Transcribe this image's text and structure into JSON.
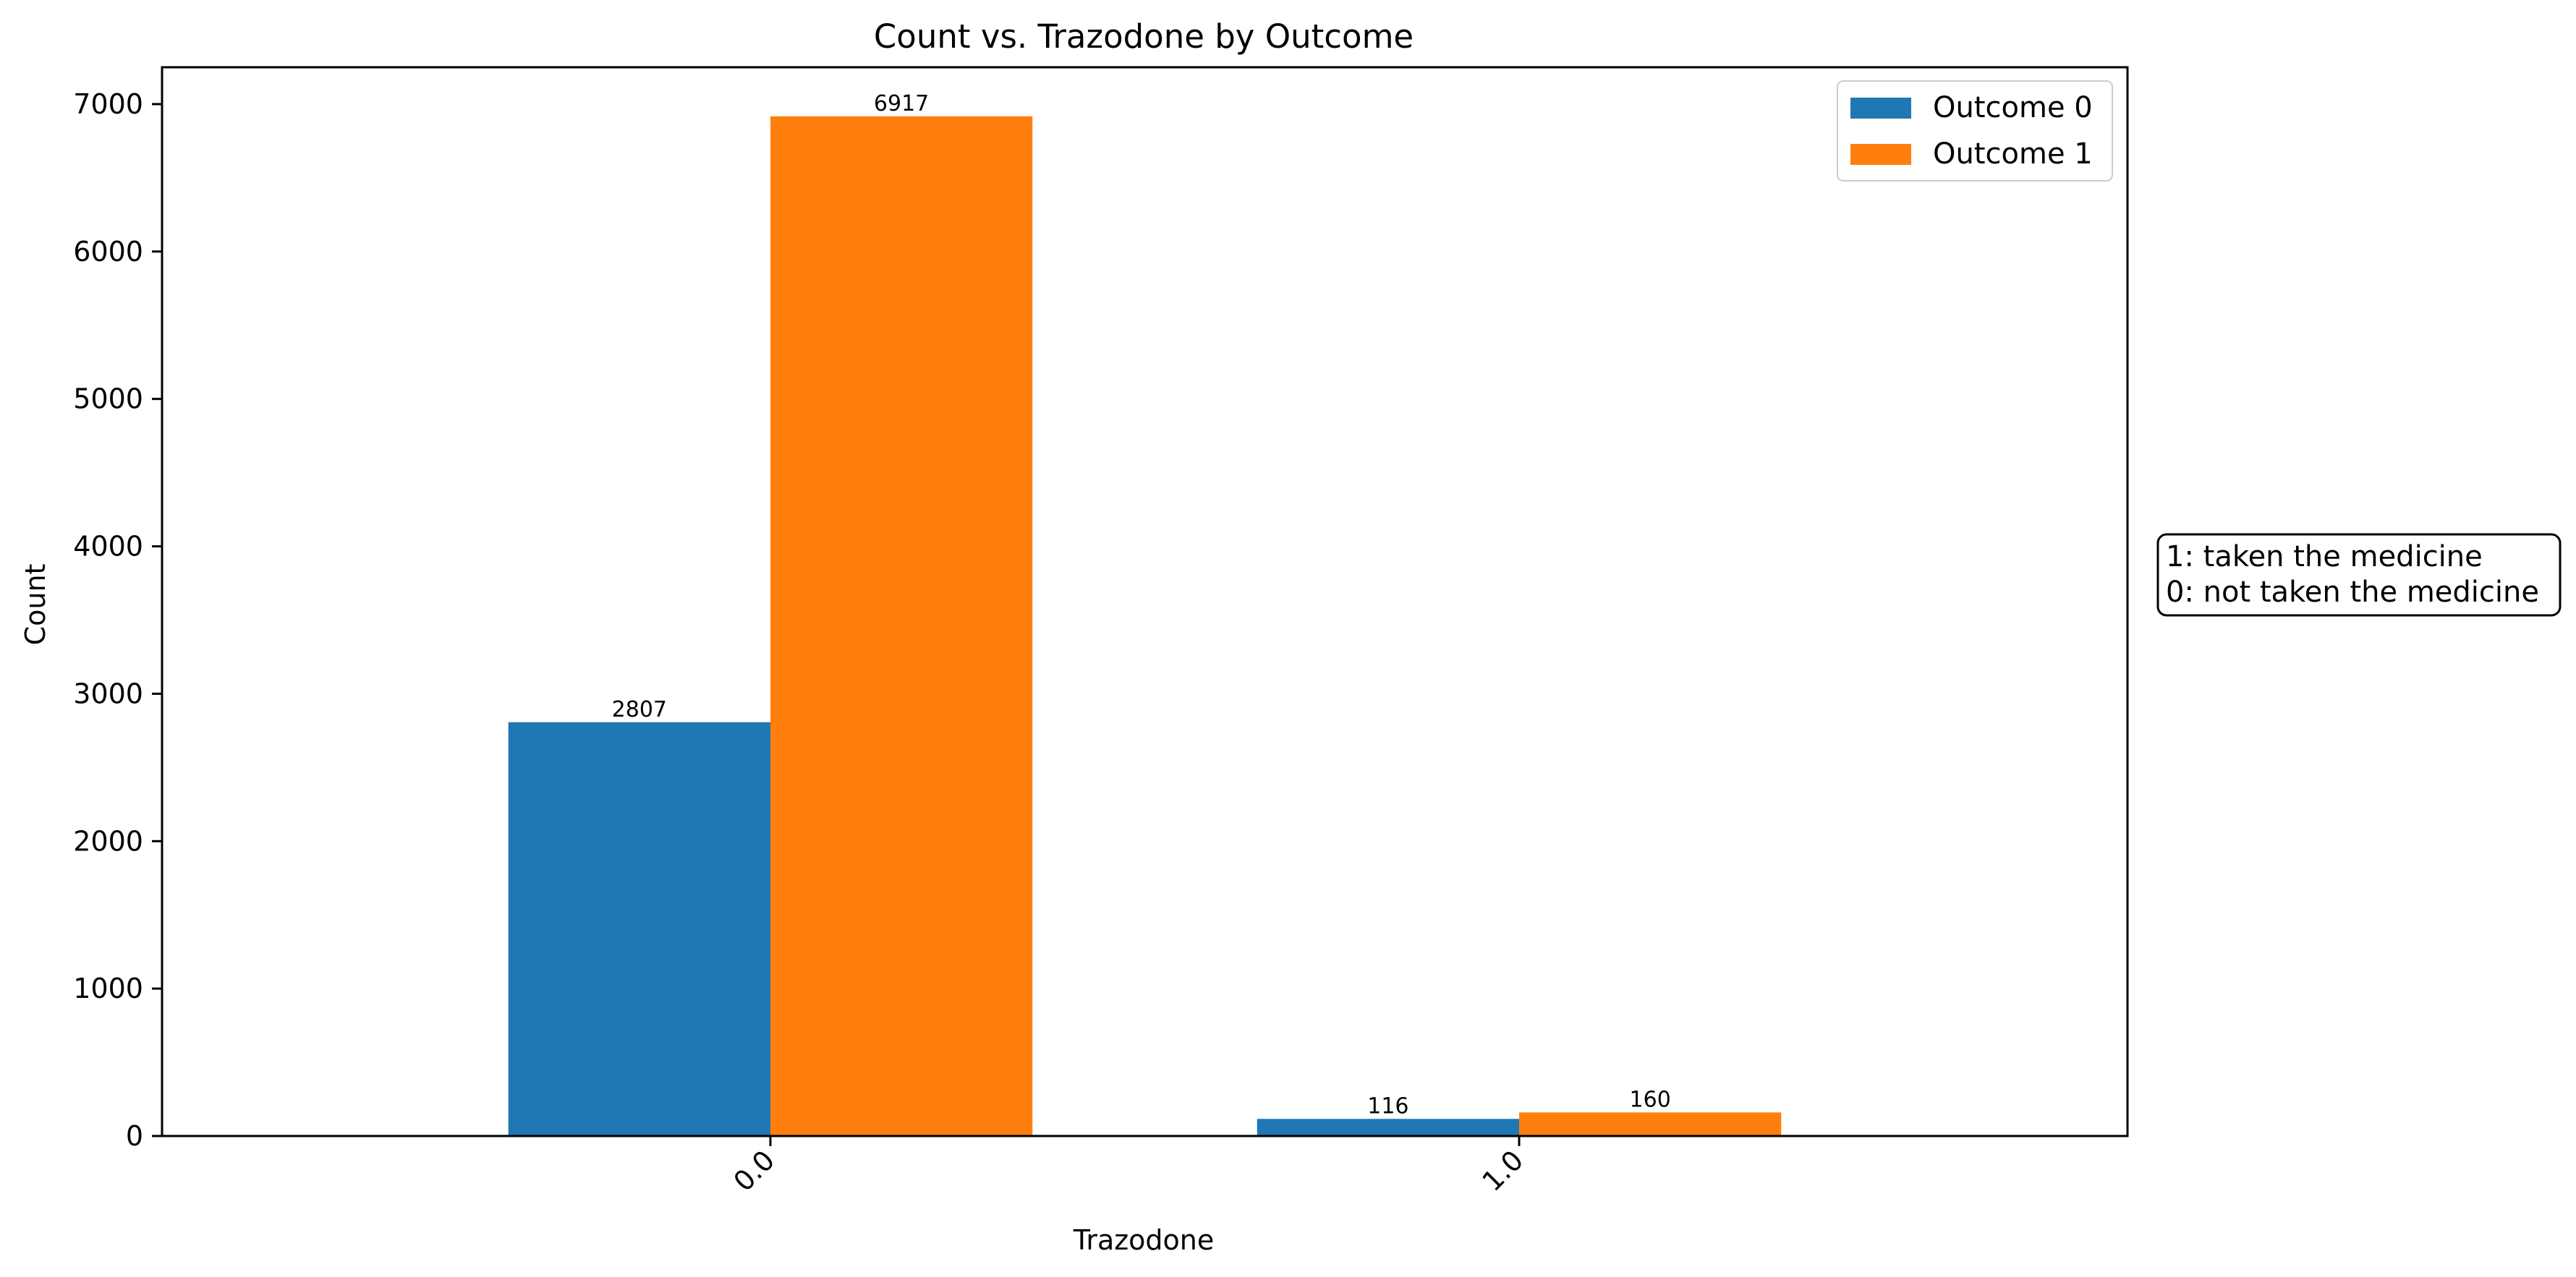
{
  "chart_data": {
    "type": "bar",
    "title": "Count vs. Trazodone by Outcome",
    "xlabel": "Trazodone",
    "ylabel": "Count",
    "categories": [
      "0.0",
      "1.0"
    ],
    "ylim": [
      0,
      7250
    ],
    "yticks": [
      0,
      1000,
      2000,
      3000,
      4000,
      5000,
      6000,
      7000
    ],
    "grid": false,
    "legend_position": "top-right",
    "series": [
      {
        "name": "Outcome 0",
        "color": "#1f77b4",
        "values": [
          2807,
          116
        ]
      },
      {
        "name": "Outcome 1",
        "color": "#ff7f0e",
        "values": [
          6917,
          160
        ]
      }
    ],
    "annotation": {
      "lines": [
        "1: taken the medicine",
        "0: not taken the medicine"
      ]
    }
  }
}
